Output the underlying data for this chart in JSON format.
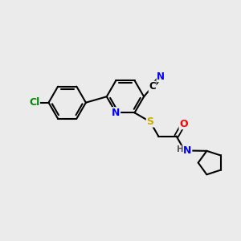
{
  "background_color": "#ebebeb",
  "bond_color": "#000000",
  "atom_colors": {
    "N": "#0000ff",
    "O": "#ff0000",
    "S": "#ccaa00",
    "Cl": "#008800",
    "C": "#000000",
    "H": "#555555"
  },
  "figsize": [
    3.0,
    3.0
  ],
  "dpi": 100
}
